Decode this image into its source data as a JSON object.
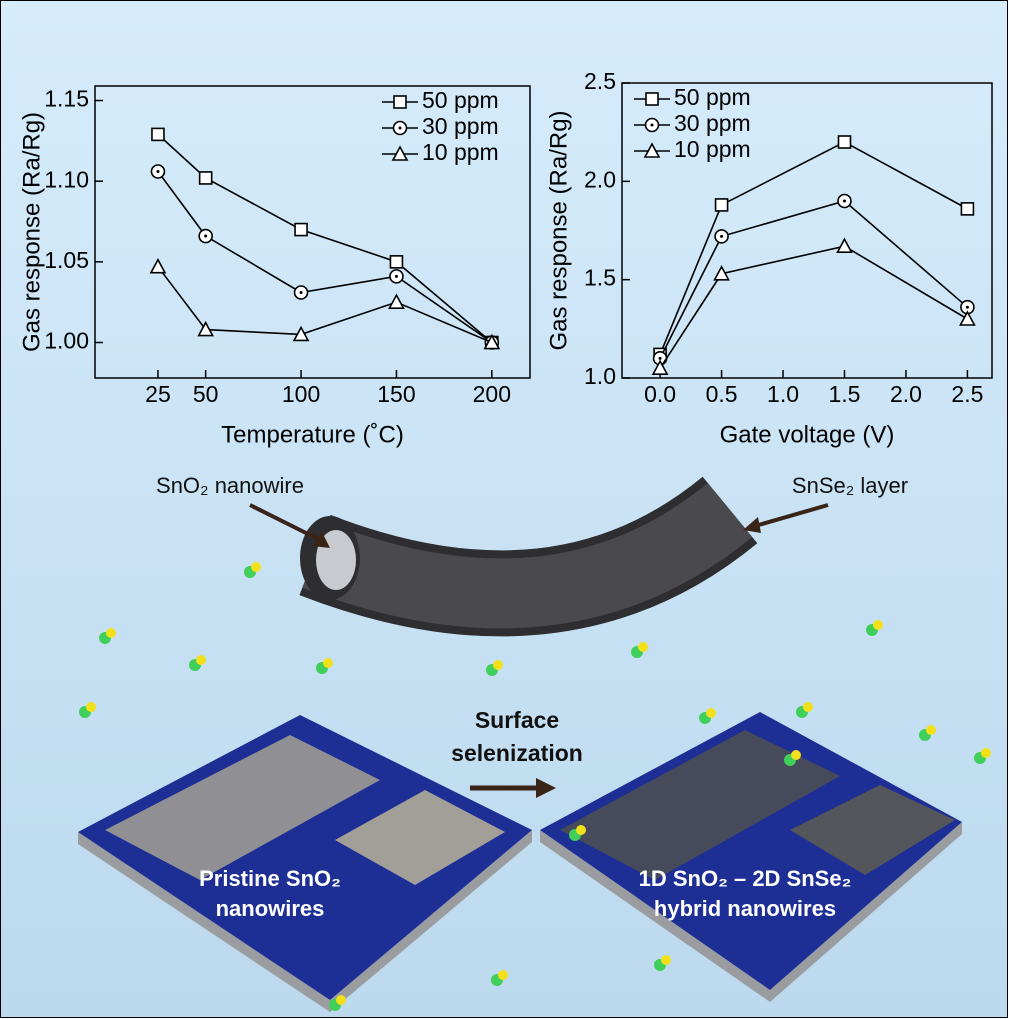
{
  "chart_data": [
    {
      "type": "line",
      "xlabel": "Temperature (˚C)",
      "ylabel": "Gas response (Ra/Rg)",
      "x": [
        25,
        50,
        100,
        150,
        200
      ],
      "xlim": [
        -8,
        220
      ],
      "xticks": [
        25,
        50,
        100,
        150,
        200
      ],
      "ylim": [
        0.978,
        1.159
      ],
      "yticks": [
        {
          "value": 1.0,
          "label": "1.00"
        },
        {
          "value": 1.05,
          "label": "1.05"
        },
        {
          "value": 1.1,
          "label": "1.10"
        },
        {
          "value": 1.15,
          "label": "1.15"
        }
      ],
      "legend": "upper right",
      "series": [
        {
          "name": "50 ppm",
          "marker": "square",
          "color": "#000000",
          "values": [
            1.129,
            1.102,
            1.07,
            1.05,
            1.0
          ]
        },
        {
          "name": "30 ppm",
          "marker": "circle",
          "color": "#000000",
          "values": [
            1.106,
            1.066,
            1.031,
            1.041,
            1.0
          ]
        },
        {
          "name": "10 ppm",
          "marker": "triangle",
          "color": "#000000",
          "values": [
            1.047,
            1.008,
            1.005,
            1.025,
            1.0
          ]
        }
      ]
    },
    {
      "type": "line",
      "xlabel": "Gate voltage (V)",
      "ylabel": "Gas response (Ra/Rg)",
      "x": [
        0,
        0.5,
        1.5,
        2.5
      ],
      "xlim": [
        -0.31,
        2.7
      ],
      "xticks": [
        {
          "value": 0,
          "label": "0.0"
        },
        0.5,
        {
          "value": 1,
          "label": "1.0"
        },
        1.5,
        {
          "value": 2,
          "label": "2.0"
        },
        2.5
      ],
      "ylim": [
        1.0,
        2.5
      ],
      "yticks": [
        {
          "value": 1,
          "label": "1.0"
        },
        1.5,
        {
          "value": 2,
          "label": "2.0"
        },
        2.5
      ],
      "legend": "upper left",
      "series": [
        {
          "name": "50 ppm",
          "marker": "square",
          "color": "#000000",
          "values": [
            1.12,
            1.88,
            2.2,
            1.86
          ]
        },
        {
          "name": "30 ppm",
          "marker": "circle",
          "color": "#000000",
          "values": [
            1.1,
            1.72,
            1.9,
            1.36
          ]
        },
        {
          "name": "10 ppm",
          "marker": "triangle",
          "color": "#000000",
          "values": [
            1.05,
            1.53,
            1.67,
            1.3
          ]
        }
      ]
    }
  ],
  "illustration": {
    "inner_label": "SnO₂ nanowire",
    "outer_label": "SnSe₂ layer",
    "process": [
      "Surface",
      "selenization"
    ],
    "devices": [
      [
        "Pristine SnO₂",
        "nanowires"
      ],
      [
        "1D SnO₂ – 2D SnSe₂",
        "hybrid nanowires"
      ]
    ]
  }
}
